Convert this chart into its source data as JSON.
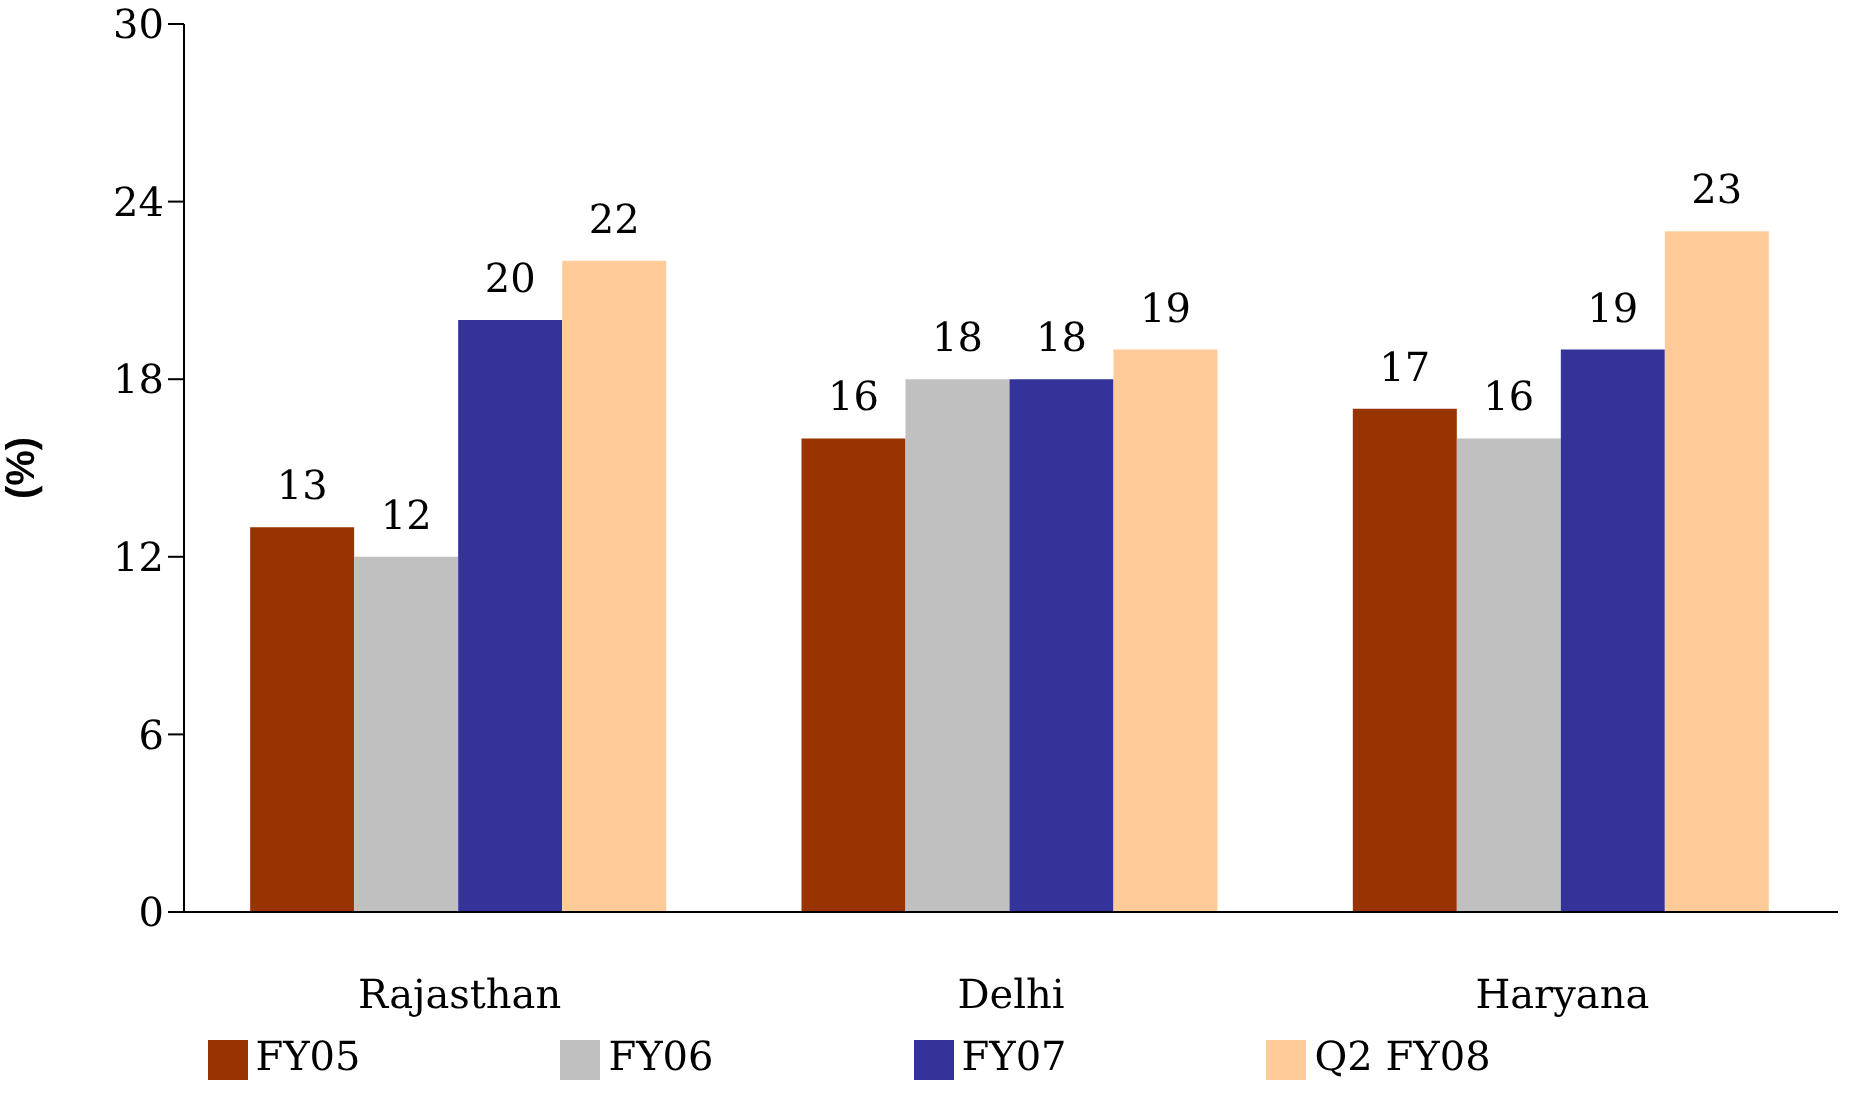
{
  "chart_data": {
    "type": "bar",
    "ylabel": "(%)",
    "categories": [
      "Rajasthan",
      "Delhi",
      "Haryana"
    ],
    "series": [
      {
        "name": "FY05",
        "color": "#993300",
        "values": [
          13,
          16,
          17
        ]
      },
      {
        "name": "FY06",
        "color": "#c0c0c0",
        "values": [
          12,
          18,
          16
        ]
      },
      {
        "name": "FY07",
        "color": "#333399",
        "values": [
          20,
          18,
          19
        ]
      },
      {
        "name": "Q2 FY08",
        "color": "#ffcc99",
        "values": [
          22,
          19,
          23
        ]
      }
    ],
    "ylim": [
      0,
      30
    ],
    "yticks": [
      0,
      6,
      12,
      18,
      24,
      30
    ],
    "grid": false,
    "legend": "bottom",
    "data_labels": true
  }
}
